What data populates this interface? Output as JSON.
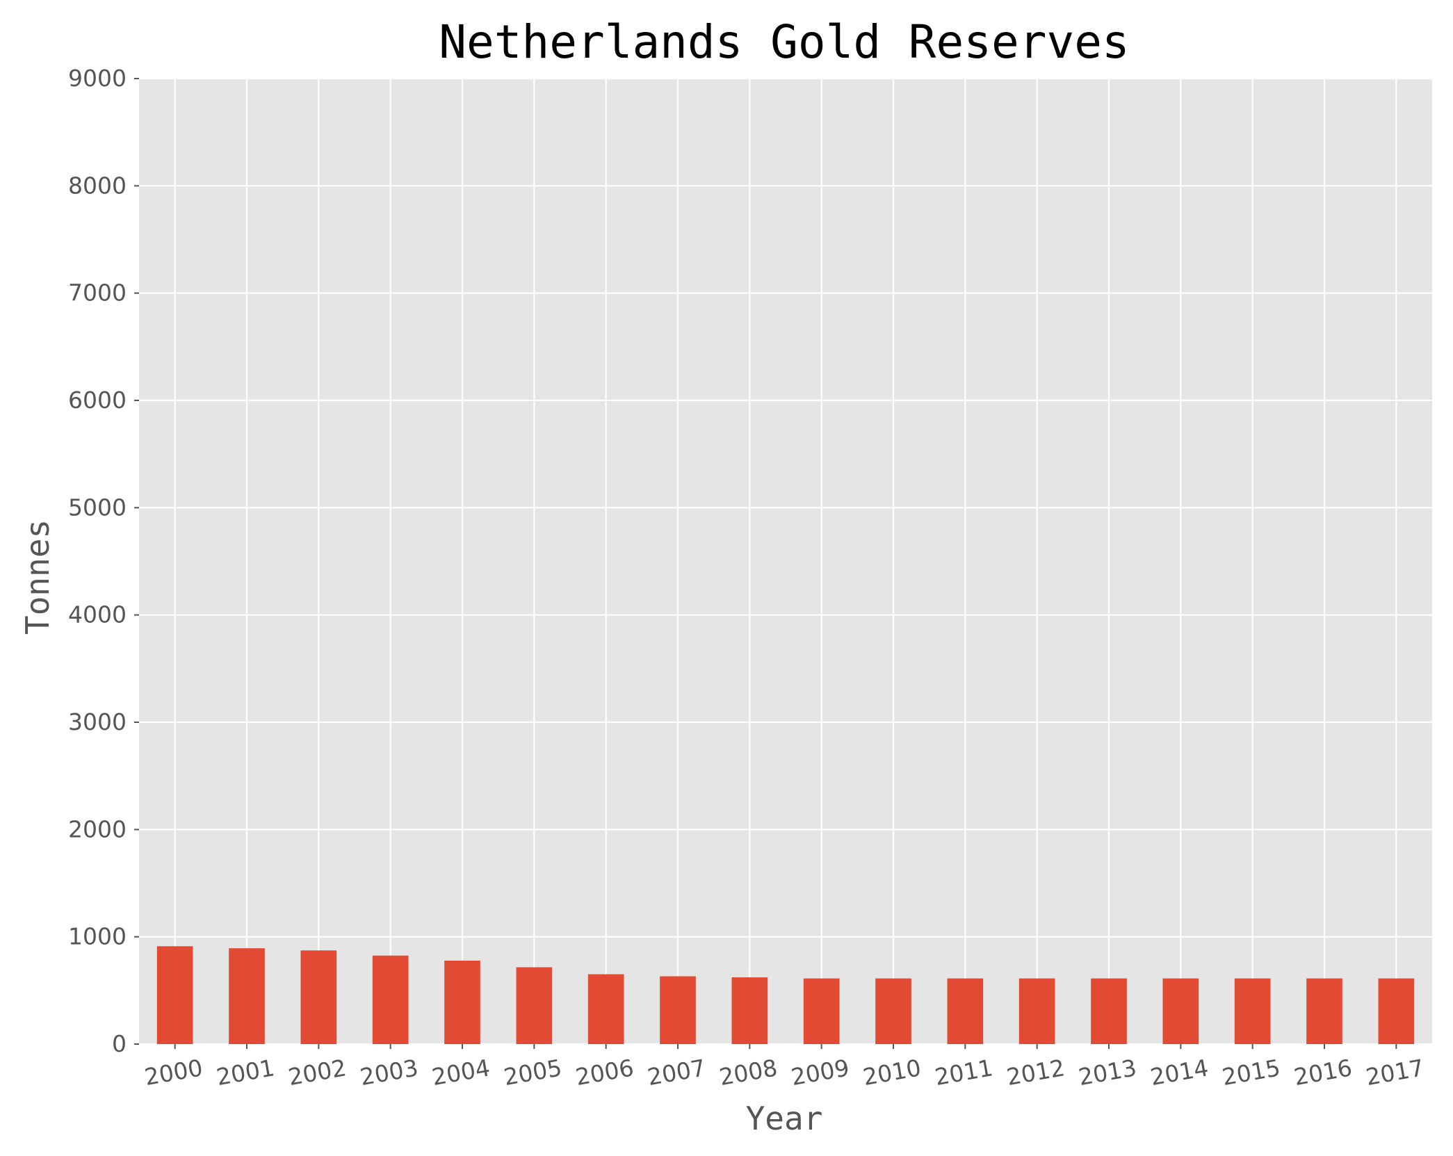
{
  "chart_data": {
    "type": "bar",
    "title": "Netherlands Gold Reserves",
    "xlabel": "Year",
    "ylabel": "Tonnes",
    "categories": [
      "2000",
      "2001",
      "2002",
      "2003",
      "2004",
      "2005",
      "2006",
      "2007",
      "2008",
      "2009",
      "2010",
      "2011",
      "2012",
      "2013",
      "2014",
      "2015",
      "2016",
      "2017"
    ],
    "values": [
      912,
      893,
      873,
      825,
      778,
      716,
      651,
      632,
      622,
      612,
      612,
      612,
      612,
      612,
      612,
      612,
      612,
      612
    ],
    "ylim": [
      0,
      9000
    ],
    "yticks": [
      0,
      1000,
      2000,
      3000,
      4000,
      5000,
      6000,
      7000,
      8000,
      9000
    ],
    "ytick_labels": [
      "0",
      "1000",
      "2000",
      "3000",
      "4000",
      "5000",
      "6000",
      "7000",
      "8000",
      "9000"
    ],
    "grid": true,
    "legend": "none",
    "colors": {
      "bar": "#e24a33",
      "plot_background": "#e5e5e5",
      "grid": "#ffffff",
      "text": "#555555",
      "title": "#000000"
    }
  }
}
